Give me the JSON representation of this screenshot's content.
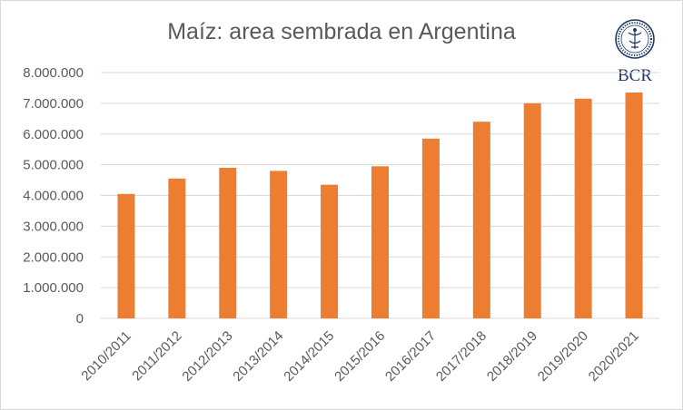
{
  "chart_data": {
    "type": "bar",
    "title": "Maíz: area sembrada en Argentina",
    "xlabel": "",
    "ylabel": "",
    "categories": [
      "2010/2011",
      "2011/2012",
      "2012/2013",
      "2013/2014",
      "2014/2015",
      "2015/2016",
      "2016/2017",
      "2017/2018",
      "2018/2019",
      "2019/2020",
      "2020/2021"
    ],
    "values": [
      4050000,
      4550000,
      4900000,
      4800000,
      4350000,
      4950000,
      5850000,
      6400000,
      7000000,
      7150000,
      7350000
    ],
    "ylim": [
      0,
      8000000
    ],
    "yticks": [
      0,
      1000000,
      2000000,
      3000000,
      4000000,
      5000000,
      6000000,
      7000000,
      8000000
    ],
    "ytick_labels": [
      "0",
      "1.000.000",
      "2.000.000",
      "3.000.000",
      "4.000.000",
      "5.000.000",
      "6.000.000",
      "7.000.000",
      "8.000.000"
    ],
    "bar_color": "#ed7d31",
    "grid": true,
    "legend": "none"
  },
  "logo": {
    "text": "BCR",
    "color": "#1f3864"
  }
}
